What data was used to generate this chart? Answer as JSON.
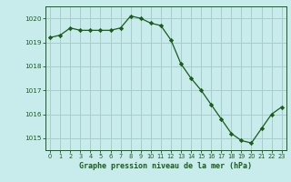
{
  "x": [
    0,
    1,
    2,
    3,
    4,
    5,
    6,
    7,
    8,
    9,
    10,
    11,
    12,
    13,
    14,
    15,
    16,
    17,
    18,
    19,
    20,
    21,
    22,
    23
  ],
  "y": [
    1019.2,
    1019.3,
    1019.6,
    1019.5,
    1019.5,
    1019.5,
    1019.5,
    1019.6,
    1020.1,
    1020.0,
    1019.8,
    1019.7,
    1019.1,
    1018.1,
    1017.5,
    1017.0,
    1016.4,
    1015.8,
    1015.2,
    1014.9,
    1014.8,
    1015.4,
    1016.0,
    1016.3
  ],
  "bg_color": "#c8ecec",
  "grid_color": "#aacccc",
  "line_color": "#1a5c1a",
  "marker_color": "#1a5c1a",
  "xlabel": "Graphe pression niveau de la mer (hPa)",
  "xlabel_color": "#1a5c1a",
  "tick_color": "#1a5c1a",
  "yticks": [
    1015,
    1016,
    1017,
    1018,
    1019,
    1020
  ],
  "xticks": [
    0,
    1,
    2,
    3,
    4,
    5,
    6,
    7,
    8,
    9,
    10,
    11,
    12,
    13,
    14,
    15,
    16,
    17,
    18,
    19,
    20,
    21,
    22,
    23
  ],
  "ylim": [
    1014.5,
    1020.5
  ],
  "xlim": [
    -0.5,
    23.5
  ]
}
